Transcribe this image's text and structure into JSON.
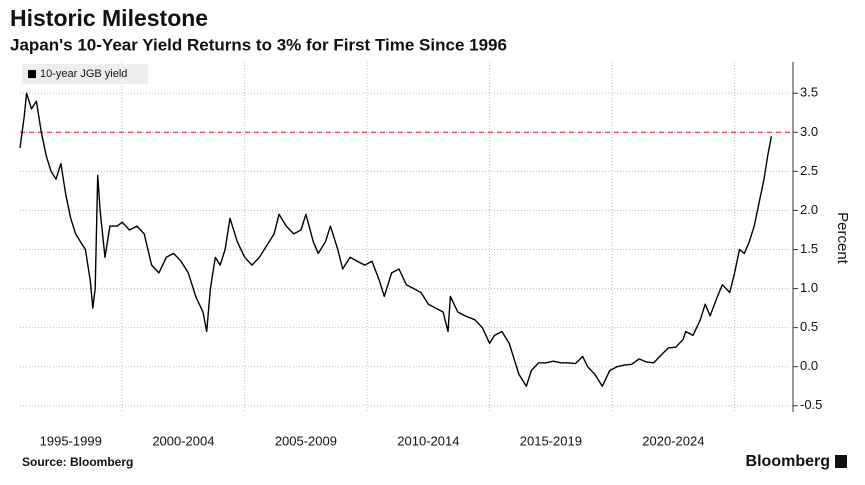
{
  "chart_data": {
    "type": "line",
    "title": "Historic Milestone",
    "subtitle": "Japan's 10-Year Yield Returns to 3% for First Time Since 1996",
    "y_axis_label": "Percent",
    "source": "Source: Bloomberg",
    "brand": "Bloomberg",
    "legend_position": "top-left",
    "grid": true,
    "xlim": [
      1995.83,
      2027.26
    ],
    "xgrid": [
      2000,
      2005,
      2010,
      2015,
      2020,
      2025
    ],
    "xticks": [
      {
        "value": 1997.9,
        "label": "1995-1999"
      },
      {
        "value": 2002.5,
        "label": "2000-2004"
      },
      {
        "value": 2007.5,
        "label": "2005-2009"
      },
      {
        "value": 2012.5,
        "label": "2010-2014"
      },
      {
        "value": 2017.5,
        "label": "2015-2019"
      },
      {
        "value": 2022.5,
        "label": "2020-2024"
      }
    ],
    "ylim": [
      -0.58,
      3.9
    ],
    "yticks": [
      3.5,
      {
        "value": 3,
        "label": "3.0"
      },
      2.5,
      {
        "value": 2,
        "label": "2.0"
      },
      1.5,
      {
        "value": 1,
        "label": "1.0"
      },
      0.5,
      {
        "value": 0,
        "label": "0.0"
      },
      -0.5
    ],
    "reference_line": {
      "value": 3,
      "color": "#e8505b"
    },
    "series": [
      {
        "name": "10-year JGB yield",
        "color": "#000000",
        "x": [
          1995.83,
          1996.0,
          1996.1,
          1996.3,
          1996.5,
          1996.7,
          1996.9,
          1997.1,
          1997.3,
          1997.5,
          1997.7,
          1997.9,
          1998.1,
          1998.3,
          1998.5,
          1998.7,
          1998.8,
          1998.9,
          1999.0,
          1999.1,
          1999.3,
          1999.5,
          1999.8,
          2000.0,
          2000.3,
          2000.6,
          2000.9,
          2001.2,
          2001.5,
          2001.8,
          2002.1,
          2002.4,
          2002.7,
          2003.0,
          2003.3,
          2003.45,
          2003.6,
          2003.8,
          2004.0,
          2004.2,
          2004.4,
          2004.7,
          2005.0,
          2005.3,
          2005.6,
          2005.9,
          2006.2,
          2006.4,
          2006.7,
          2007.0,
          2007.3,
          2007.5,
          2007.8,
          2008.0,
          2008.3,
          2008.5,
          2008.8,
          2009.0,
          2009.3,
          2009.6,
          2009.9,
          2010.2,
          2010.5,
          2010.7,
          2011.0,
          2011.3,
          2011.6,
          2011.9,
          2012.2,
          2012.5,
          2012.8,
          2013.1,
          2013.3,
          2013.4,
          2013.7,
          2014.0,
          2014.4,
          2014.7,
          2015.0,
          2015.2,
          2015.5,
          2015.8,
          2016.0,
          2016.2,
          2016.5,
          2016.7,
          2017.0,
          2017.3,
          2017.6,
          2017.9,
          2018.2,
          2018.5,
          2018.8,
          2019.0,
          2019.3,
          2019.6,
          2019.9,
          2020.2,
          2020.5,
          2020.8,
          2021.1,
          2021.4,
          2021.7,
          2022.0,
          2022.3,
          2022.6,
          2022.9,
          2023.0,
          2023.3,
          2023.6,
          2023.8,
          2024.0,
          2024.3,
          2024.5,
          2024.8,
          2025.0,
          2025.2,
          2025.4,
          2025.6,
          2025.8,
          2026.0,
          2026.2,
          2026.35,
          2026.5
        ],
        "values": [
          2.8,
          3.2,
          3.5,
          3.3,
          3.4,
          3.0,
          2.7,
          2.5,
          2.4,
          2.6,
          2.2,
          1.9,
          1.7,
          1.6,
          1.5,
          1.1,
          0.75,
          1.0,
          2.45,
          2.0,
          1.4,
          1.8,
          1.8,
          1.85,
          1.75,
          1.8,
          1.7,
          1.3,
          1.2,
          1.4,
          1.45,
          1.35,
          1.2,
          0.9,
          0.7,
          0.45,
          1.0,
          1.4,
          1.3,
          1.5,
          1.9,
          1.6,
          1.4,
          1.3,
          1.4,
          1.55,
          1.7,
          1.95,
          1.8,
          1.7,
          1.75,
          1.95,
          1.6,
          1.45,
          1.6,
          1.8,
          1.5,
          1.25,
          1.4,
          1.35,
          1.3,
          1.35,
          1.1,
          0.9,
          1.2,
          1.25,
          1.05,
          1.0,
          0.95,
          0.8,
          0.75,
          0.7,
          0.45,
          0.9,
          0.7,
          0.65,
          0.6,
          0.5,
          0.3,
          0.4,
          0.45,
          0.3,
          0.1,
          -0.1,
          -0.25,
          -0.05,
          0.05,
          0.05,
          0.07,
          0.05,
          0.05,
          0.04,
          0.13,
          0.0,
          -0.1,
          -0.25,
          -0.05,
          0.0,
          0.02,
          0.03,
          0.1,
          0.06,
          0.05,
          0.15,
          0.24,
          0.25,
          0.35,
          0.45,
          0.4,
          0.6,
          0.8,
          0.65,
          0.9,
          1.05,
          0.95,
          1.2,
          1.5,
          1.45,
          1.6,
          1.8,
          2.1,
          2.4,
          2.7,
          2.95
        ]
      }
    ]
  }
}
